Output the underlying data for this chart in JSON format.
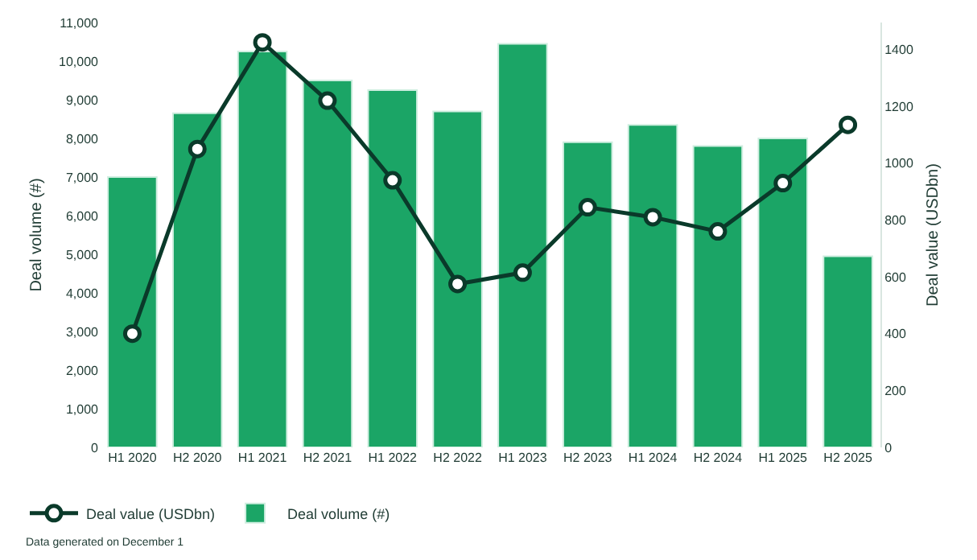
{
  "chart_data": {
    "type": "bar",
    "categories": [
      "H1 2020",
      "H2 2020",
      "H1 2021",
      "H2 2021",
      "H1 2022",
      "H2 2022",
      "H1 2023",
      "H2 2023",
      "H1 2024",
      "H2 2024",
      "H1 2025",
      "H2 2025"
    ],
    "series": [
      {
        "name": "Deal value (USDbn)",
        "type": "line",
        "axis": "y2",
        "color": "#0a3a2a",
        "marker": "circle",
        "line_style": "solid",
        "values": [
          400,
          1050,
          1425,
          1220,
          940,
          575,
          615,
          845,
          810,
          760,
          930,
          1135
        ]
      },
      {
        "name": "Deal volume (#)",
        "color": "#1ba566",
        "values": [
          7000,
          8650,
          10250,
          9500,
          9250,
          8700,
          10450,
          7900,
          8350,
          7800,
          8000,
          4950
        ]
      }
    ],
    "ylabel": "Deal volume (#)",
    "y2label": "Deal value (USDbn)",
    "ylim": [
      0,
      11000
    ],
    "yticks": [
      0,
      {
        "value": 1000,
        "label": "1,000"
      },
      {
        "value": 2000,
        "label": "2,000"
      },
      {
        "value": 3000,
        "label": "3,000"
      },
      {
        "value": 4000,
        "label": "4,000"
      },
      {
        "value": 5000,
        "label": "5,000"
      },
      {
        "value": 6000,
        "label": "6,000"
      },
      {
        "value": 7000,
        "label": "7,000"
      },
      {
        "value": 8000,
        "label": "8,000"
      },
      {
        "value": 9000,
        "label": "9,000"
      },
      {
        "value": 10000,
        "label": "10,000"
      },
      {
        "value": 11000,
        "label": "11,000"
      }
    ],
    "y2lim": [
      0,
      1495
    ],
    "y2ticks": [
      0,
      200,
      400,
      600,
      800,
      1000,
      1200,
      1400
    ],
    "grid": false,
    "legend": "bottom left",
    "annotations": [
      "Data generated on December 1"
    ]
  }
}
